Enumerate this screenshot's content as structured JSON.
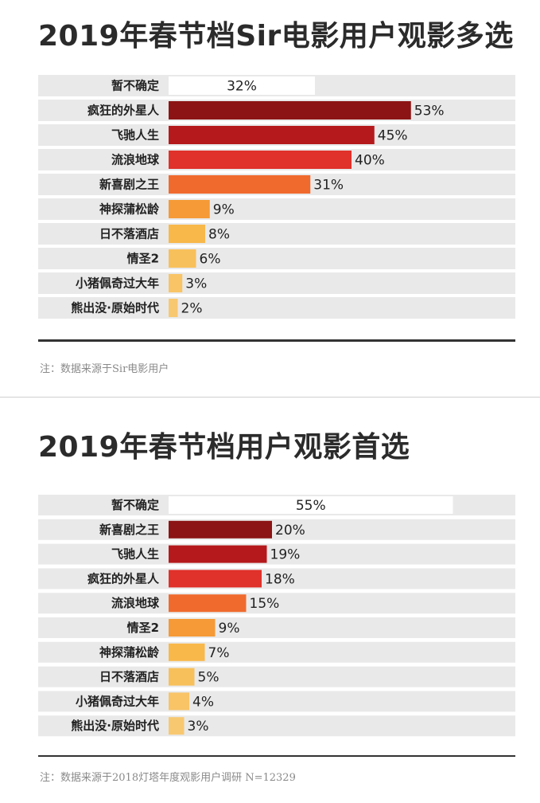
{
  "panels": [
    {
      "title": "2019年春节档Sir电影用户观影多选",
      "note": "注：数据来源于Sir电影用户",
      "chart_data": {
        "type": "bar",
        "orientation": "horizontal",
        "title": "2019年春节档Sir电影用户观影多选",
        "categories": [
          "暂不确定",
          "疯狂的外星人",
          "飞驰人生",
          "流浪地球",
          "新喜剧之王",
          "神探蒲松龄",
          "日不落酒店",
          "情圣2",
          "小猪佩奇过大年",
          "熊出没·原始时代"
        ],
        "values": [
          32,
          53,
          45,
          40,
          31,
          9,
          8,
          6,
          3,
          2
        ],
        "value_labels": [
          "32%",
          "53%",
          "45%",
          "40%",
          "31%",
          "9%",
          "8%",
          "6%",
          "3%",
          "2%"
        ],
        "colors": [
          "#ffffff",
          "#8c1414",
          "#b5191b",
          "#e0312a",
          "#f06a2e",
          "#f59a36",
          "#f8b84a",
          "#f8c05a",
          "#f8c466",
          "#f8c870"
        ],
        "xlim": [
          0,
          100
        ],
        "unit": "%"
      }
    },
    {
      "title": "2019年春节档用户观影首选",
      "note": "注：数据来源于2018灯塔年度观影用户调研 N=12329",
      "chart_data": {
        "type": "bar",
        "orientation": "horizontal",
        "title": "2019年春节档用户观影首选",
        "categories": [
          "暂不确定",
          "新喜剧之王",
          "飞驰人生",
          "疯狂的外星人",
          "流浪地球",
          "情圣2",
          "神探蒲松龄",
          "日不落酒店",
          "小猪佩奇过大年",
          "熊出没·原始时代"
        ],
        "values": [
          55,
          20,
          19,
          18,
          15,
          9,
          7,
          5,
          4,
          3
        ],
        "value_labels": [
          "55%",
          "20%",
          "19%",
          "18%",
          "15%",
          "9%",
          "7%",
          "5%",
          "4%",
          "3%"
        ],
        "colors": [
          "#ffffff",
          "#8c1414",
          "#b5191b",
          "#e0312a",
          "#f06a2e",
          "#f59a36",
          "#f8b84a",
          "#f8c05a",
          "#f8c466",
          "#f8c870"
        ],
        "xlim": [
          0,
          100
        ],
        "unit": "%"
      }
    }
  ]
}
